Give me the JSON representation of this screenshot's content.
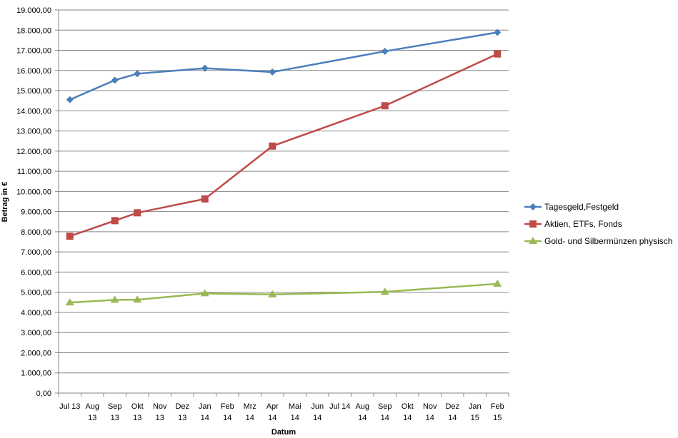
{
  "chart_data": {
    "type": "line",
    "title": "",
    "xlabel": "Datum",
    "ylabel": "Betrag in €",
    "ylim": [
      0,
      19000
    ],
    "yticks": [
      0,
      1000,
      2000,
      3000,
      4000,
      5000,
      6000,
      7000,
      8000,
      9000,
      10000,
      11000,
      12000,
      13000,
      14000,
      15000,
      16000,
      17000,
      18000,
      19000
    ],
    "ytick_labels": [
      "0,00",
      "1.000,00",
      "2.000,00",
      "3.000,00",
      "4.000,00",
      "5.000,00",
      "6.000,00",
      "7.000,00",
      "8.000,00",
      "9.000,00",
      "10.000,00",
      "11.000,00",
      "12.000,00",
      "13.000,00",
      "14.000,00",
      "15.000,00",
      "16.000,00",
      "17.000,00",
      "18.000,00",
      "19.000,00"
    ],
    "categories": [
      "Jul 13",
      "Aug 13",
      "Sep 13",
      "Okt 13",
      "Nov 13",
      "Dez 13",
      "Jan 14",
      "Feb 14",
      "Mrz 14",
      "Apr 14",
      "Mai 14",
      "Jun 14",
      "Jul 14",
      "Aug 14",
      "Sep 14",
      "Okt 14",
      "Nov 14",
      "Dez 14",
      "Jan 15",
      "Feb 15"
    ],
    "category_lines": [
      [
        "Jul 13"
      ],
      [
        "Aug",
        "13"
      ],
      [
        "Sep",
        "13"
      ],
      [
        "Okt",
        "13"
      ],
      [
        "Nov",
        "13"
      ],
      [
        "Dez",
        "13"
      ],
      [
        "Jan",
        "14"
      ],
      [
        "Feb",
        "14"
      ],
      [
        "Mrz",
        "14"
      ],
      [
        "Apr",
        "14"
      ],
      [
        "Mai",
        "14"
      ],
      [
        "Jun",
        "14"
      ],
      [
        "Jul 14"
      ],
      [
        "Aug",
        "14"
      ],
      [
        "Sep",
        "14"
      ],
      [
        "Okt",
        "14"
      ],
      [
        "Nov",
        "14"
      ],
      [
        "Dez",
        "14"
      ],
      [
        "Jan",
        "15"
      ],
      [
        "Feb",
        "15"
      ]
    ],
    "grid": true,
    "legend_position": "right",
    "series": [
      {
        "name": "Tagesgeld,Festgeld",
        "color": "#4a7ebb",
        "marker": "diamond",
        "points": [
          [
            0.5,
            14550
          ],
          [
            2.5,
            15520
          ],
          [
            3.5,
            15840
          ],
          [
            6.5,
            16110
          ],
          [
            9.5,
            15920
          ],
          [
            14.5,
            16950
          ],
          [
            19.5,
            17890
          ]
        ]
      },
      {
        "name": "Aktien, ETFs, Fonds",
        "color": "#be4b48",
        "marker": "square",
        "points": [
          [
            0.5,
            7780
          ],
          [
            2.5,
            8550
          ],
          [
            3.5,
            8940
          ],
          [
            6.5,
            9630
          ],
          [
            9.5,
            12250
          ],
          [
            14.5,
            14250
          ],
          [
            19.5,
            16820
          ]
        ]
      },
      {
        "name": "Gold- und Silbermünzen physisch",
        "color": "#98b954",
        "marker": "triangle",
        "points": [
          [
            0.5,
            4490
          ],
          [
            2.5,
            4620
          ],
          [
            3.5,
            4630
          ],
          [
            6.5,
            4940
          ],
          [
            9.5,
            4890
          ],
          [
            14.5,
            5020
          ],
          [
            19.5,
            5420
          ]
        ]
      }
    ]
  }
}
